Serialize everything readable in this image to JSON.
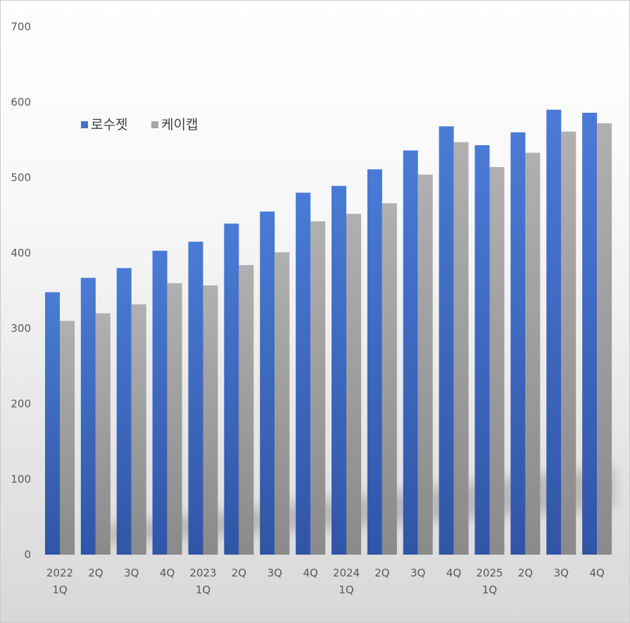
{
  "chart_data": {
    "type": "bar",
    "categories": [
      [
        "2022",
        "1Q"
      ],
      [
        "2Q"
      ],
      [
        "3Q"
      ],
      [
        "4Q"
      ],
      [
        "2023",
        "1Q"
      ],
      [
        "2Q"
      ],
      [
        "3Q"
      ],
      [
        "4Q"
      ],
      [
        "2024",
        "1Q"
      ],
      [
        "2Q"
      ],
      [
        "3Q"
      ],
      [
        "4Q"
      ],
      [
        "2025",
        "1Q"
      ],
      [
        "2Q"
      ],
      [
        "3Q"
      ],
      [
        "4Q"
      ]
    ],
    "series": [
      {
        "name": "로수젯",
        "color": "#4472c4",
        "values": [
          348,
          367,
          380,
          403,
          415,
          439,
          455,
          480,
          489,
          511,
          536,
          568,
          543,
          560,
          590,
          586
        ]
      },
      {
        "name": "케이캡",
        "color": "#a5a5a5",
        "values": [
          310,
          320,
          332,
          360,
          357,
          384,
          401,
          442,
          452,
          466,
          504,
          547,
          514,
          533,
          561,
          572
        ]
      }
    ],
    "ylim": [
      0,
      700
    ],
    "yticks": [
      0,
      100,
      200,
      300,
      400,
      500,
      600,
      700
    ],
    "grid": false,
    "legend": "upper-left",
    "title": "",
    "xlabel": "",
    "ylabel": ""
  }
}
